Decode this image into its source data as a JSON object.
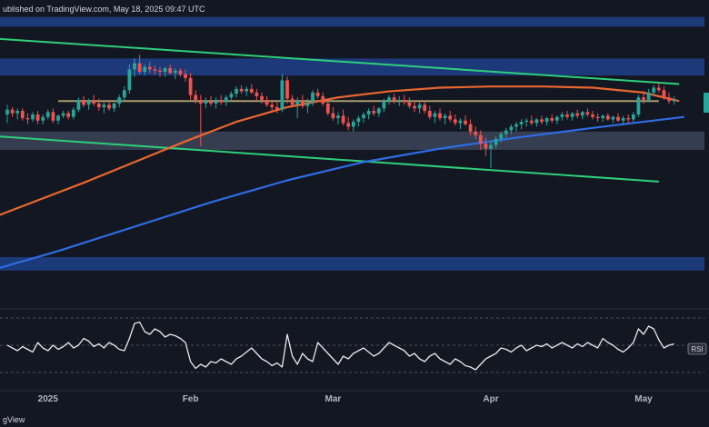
{
  "header": {
    "published_text": "ublished on TradingView.com, May 18, 2025 09:47 UTC"
  },
  "footer": {
    "brand_text": "gView"
  },
  "chart_data": {
    "type": "candlestick",
    "title": "",
    "xlabel": "",
    "ylabel": "",
    "x_ticks": [
      {
        "label": "2025",
        "x": 8
      },
      {
        "label": "Feb",
        "x": 36
      },
      {
        "label": "Mar",
        "x": 64
      },
      {
        "label": "Apr",
        "x": 95
      },
      {
        "label": "May",
        "x": 125
      }
    ],
    "candles": [
      [
        0,
        10,
        10.8,
        9.3,
        10.4
      ],
      [
        1,
        10.4,
        10.6,
        9.8,
        10.1
      ],
      [
        2,
        10.1,
        10.5,
        9.6,
        10.3
      ],
      [
        3,
        10.3,
        10.5,
        9.5,
        9.7
      ],
      [
        4,
        9.7,
        10.1,
        9.2,
        9.6
      ],
      [
        5,
        9.6,
        10.2,
        9.4,
        10
      ],
      [
        6,
        10,
        10.3,
        9.2,
        9.5
      ],
      [
        7,
        9.5,
        10,
        9.2,
        9.8
      ],
      [
        8,
        9.8,
        10.4,
        9.6,
        10.2
      ],
      [
        9,
        10.2,
        10.5,
        9.3,
        9.5
      ],
      [
        10,
        9.5,
        10,
        9.2,
        9.9
      ],
      [
        11,
        9.9,
        10.3,
        9.7,
        10.1
      ],
      [
        12,
        10.1,
        10.3,
        9.6,
        9.8
      ],
      [
        13,
        9.8,
        10.6,
        9.6,
        10.4
      ],
      [
        14,
        10.4,
        11.4,
        10.2,
        11.2
      ],
      [
        15,
        11.2,
        11.5,
        10.6,
        10.8
      ],
      [
        16,
        10.8,
        11.3,
        10.4,
        11.1
      ],
      [
        17,
        11.1,
        11.6,
        10.7,
        10.9
      ],
      [
        18,
        10.9,
        11.3,
        10.3,
        10.6
      ],
      [
        19,
        10.6,
        11,
        10.1,
        10.8
      ],
      [
        20,
        10.8,
        11.2,
        10.3,
        10.5
      ],
      [
        21,
        10.5,
        11,
        10.2,
        10.9
      ],
      [
        22,
        10.9,
        11.6,
        10.6,
        11.4
      ],
      [
        23,
        11.4,
        12.3,
        11.1,
        12
      ],
      [
        24,
        12,
        14.1,
        11.7,
        13.7
      ],
      [
        25,
        13.7,
        14.6,
        13.1,
        14.2
      ],
      [
        26,
        14.2,
        14.9,
        13.3,
        13.5
      ],
      [
        27,
        13.5,
        14.1,
        13.2,
        13.9
      ],
      [
        28,
        13.9,
        14.3,
        13.4,
        13.7
      ],
      [
        29,
        13.7,
        14,
        13.3,
        13.6
      ],
      [
        30,
        13.6,
        13.9,
        13.1,
        13.5
      ],
      [
        31,
        13.5,
        13.9,
        13.1,
        13.8
      ],
      [
        32,
        13.8,
        14.1,
        13.3,
        13.4
      ],
      [
        33,
        13.4,
        13.8,
        12.9,
        13.6
      ],
      [
        34,
        13.6,
        13.8,
        13.1,
        13.3
      ],
      [
        35,
        13.3,
        13.7,
        12.7,
        13
      ],
      [
        36,
        13,
        13.4,
        11.2,
        11.6
      ],
      [
        37,
        11.6,
        12,
        10.9,
        11.2
      ],
      [
        38,
        11.2,
        11.6,
        7.4,
        10.9
      ],
      [
        39,
        10.9,
        11.4,
        10.5,
        11.1
      ],
      [
        40,
        11.1,
        11.5,
        10.7,
        10.9
      ],
      [
        41,
        10.9,
        11.4,
        10.5,
        11.2
      ],
      [
        42,
        11.2,
        11.6,
        10.8,
        11
      ],
      [
        43,
        11,
        11.6,
        10.7,
        11.4
      ],
      [
        44,
        11.4,
        11.9,
        11.1,
        11.7
      ],
      [
        45,
        11.7,
        12.3,
        11.4,
        12.1
      ],
      [
        46,
        12.1,
        12.4,
        11.7,
        11.9
      ],
      [
        47,
        11.9,
        12.3,
        11.5,
        12.1
      ],
      [
        48,
        12.1,
        12.5,
        11.7,
        11.8
      ],
      [
        49,
        11.8,
        12.1,
        11.2,
        11.5
      ],
      [
        50,
        11.5,
        11.8,
        10.9,
        11.2
      ],
      [
        51,
        11.2,
        11.5,
        10.6,
        10.8
      ],
      [
        52,
        10.8,
        11.2,
        10.2,
        10.6
      ],
      [
        53,
        10.6,
        11,
        10.1,
        10.4
      ],
      [
        54,
        10.4,
        13.3,
        10.2,
        12.8
      ],
      [
        55,
        12.8,
        13.1,
        10.9,
        11.3
      ],
      [
        56,
        11.3,
        11.6,
        10.6,
        10.8
      ],
      [
        57,
        10.8,
        11.4,
        9.7,
        11.1
      ],
      [
        58,
        11.1,
        11.6,
        10.5,
        10.7
      ],
      [
        59,
        10.7,
        11.3,
        10.1,
        11
      ],
      [
        60,
        11,
        12,
        10.7,
        11.8
      ],
      [
        61,
        11.8,
        12.1,
        11.3,
        11.5
      ],
      [
        62,
        11.5,
        11.8,
        10.7,
        10.9
      ],
      [
        63,
        10.9,
        11.3,
        9.9,
        10.1
      ],
      [
        64,
        10.1,
        10.6,
        9.5,
        9.7
      ],
      [
        65,
        9.7,
        10.2,
        9.2,
        9.9
      ],
      [
        66,
        9.9,
        10.4,
        9.1,
        9.3
      ],
      [
        67,
        9.3,
        9.8,
        8.7,
        9
      ],
      [
        68,
        9,
        9.6,
        8.6,
        9.4
      ],
      [
        69,
        9.4,
        9.9,
        9,
        9.7
      ],
      [
        70,
        9.7,
        10.2,
        9.3,
        10
      ],
      [
        71,
        10,
        10.5,
        9.6,
        10.3
      ],
      [
        72,
        10.3,
        10.7,
        9.9,
        10.1
      ],
      [
        73,
        10.1,
        10.6,
        9.8,
        10.5
      ],
      [
        74,
        10.5,
        11.3,
        10.2,
        11.1
      ],
      [
        75,
        11.1,
        11.6,
        10.8,
        11.4
      ],
      [
        76,
        11.4,
        11.7,
        10.9,
        11.1
      ],
      [
        77,
        11.1,
        11.5,
        10.7,
        11.2
      ],
      [
        78,
        11.2,
        11.6,
        10.8,
        11
      ],
      [
        79,
        11,
        11.4,
        10.5,
        10.7
      ],
      [
        80,
        10.7,
        11.1,
        10.2,
        10.5
      ],
      [
        81,
        10.5,
        11,
        10.1,
        10.8
      ],
      [
        82,
        10.8,
        11.1,
        10.1,
        10.3
      ],
      [
        83,
        10.3,
        10.7,
        9.6,
        9.8
      ],
      [
        84,
        9.8,
        10.3,
        9.3,
        10.1
      ],
      [
        85,
        10.1,
        10.5,
        9.5,
        9.7
      ],
      [
        86,
        9.7,
        10.1,
        9.2,
        9.9
      ],
      [
        87,
        9.9,
        10.3,
        9.4,
        9.6
      ],
      [
        88,
        9.6,
        10,
        9.1,
        9.3
      ],
      [
        89,
        9.3,
        9.7,
        8.8,
        9.5
      ],
      [
        90,
        9.5,
        9.9,
        9.1,
        9.2
      ],
      [
        91,
        9.2,
        9.6,
        8.3,
        8.6
      ],
      [
        92,
        8.6,
        9,
        8,
        8.3
      ],
      [
        93,
        8.3,
        8.7,
        7.1,
        7.6
      ],
      [
        94,
        7.6,
        8.1,
        6.6,
        7.2
      ],
      [
        95,
        7.2,
        7.8,
        5.6,
        7.5
      ],
      [
        96,
        7.5,
        8.2,
        7.2,
        8
      ],
      [
        97,
        8,
        8.6,
        7.7,
        8.4
      ],
      [
        98,
        8.4,
        8.9,
        8.1,
        8.7
      ],
      [
        99,
        8.7,
        9.2,
        8.4,
        9
      ],
      [
        100,
        9,
        9.4,
        8.6,
        9.2
      ],
      [
        101,
        9.2,
        9.6,
        8.8,
        9.4
      ],
      [
        102,
        9.4,
        9.7,
        9,
        9.5
      ],
      [
        103,
        9.5,
        9.9,
        9.1,
        9.3
      ],
      [
        104,
        9.3,
        9.7,
        9,
        9.6
      ],
      [
        105,
        9.6,
        9.9,
        9.2,
        9.4
      ],
      [
        106,
        9.4,
        9.8,
        9.1,
        9.7
      ],
      [
        107,
        9.7,
        10,
        9.3,
        9.5
      ],
      [
        108,
        9.5,
        9.9,
        9.2,
        9.8
      ],
      [
        109,
        9.8,
        10.2,
        9.5,
        10
      ],
      [
        110,
        10,
        10.3,
        9.6,
        9.8
      ],
      [
        111,
        9.8,
        10.2,
        9.5,
        10.1
      ],
      [
        112,
        10.1,
        10.4,
        9.7,
        9.9
      ],
      [
        113,
        9.9,
        10.3,
        9.6,
        10.2
      ],
      [
        114,
        10.2,
        10.5,
        9.8,
        10
      ],
      [
        115,
        10,
        10.3,
        9.6,
        9.8
      ],
      [
        116,
        9.8,
        10.1,
        9.4,
        9.7
      ],
      [
        117,
        9.7,
        10,
        9.4,
        9.9
      ],
      [
        118,
        9.9,
        10.1,
        9.5,
        9.6
      ],
      [
        119,
        9.6,
        9.9,
        9.3,
        9.8
      ],
      [
        120,
        9.8,
        10.1,
        9.4,
        9.5
      ],
      [
        121,
        9.5,
        9.9,
        9.2,
        9.7
      ],
      [
        122,
        9.7,
        10,
        9.3,
        9.6
      ],
      [
        123,
        9.6,
        10.2,
        9.4,
        10
      ],
      [
        124,
        10,
        11.6,
        9.8,
        11.4
      ],
      [
        125,
        11.4,
        11.9,
        10.9,
        11.2
      ],
      [
        126,
        11.2,
        12.1,
        11,
        11.8
      ],
      [
        127,
        11.8,
        12.4,
        11.5,
        12.2
      ],
      [
        128,
        12.2,
        12.6,
        11.8,
        12
      ],
      [
        129,
        12,
        12.3,
        11.2,
        11.4
      ],
      [
        130,
        11.4,
        11.8,
        10.9,
        11.1
      ],
      [
        131,
        11.1,
        11.5,
        10.8,
        11.2
      ]
    ],
    "moving_averages": [
      {
        "color": "#e8672f",
        "points": [
          [
            -5,
            1.2
          ],
          [
            5,
            2.8
          ],
          [
            15,
            4.4
          ],
          [
            25,
            6.1
          ],
          [
            35,
            7.8
          ],
          [
            45,
            9.4
          ],
          [
            55,
            10.6
          ],
          [
            65,
            11.4
          ],
          [
            75,
            11.9
          ],
          [
            85,
            12.2
          ],
          [
            95,
            12.3
          ],
          [
            105,
            12.3
          ],
          [
            115,
            12.2
          ],
          [
            125,
            11.8
          ],
          [
            132,
            11.1
          ]
        ]
      },
      {
        "color": "#2f6ce5",
        "points": [
          [
            -5,
            -3
          ],
          [
            10,
            -1.2
          ],
          [
            25,
            0.8
          ],
          [
            40,
            2.8
          ],
          [
            55,
            4.6
          ],
          [
            70,
            6.1
          ],
          [
            85,
            7.2
          ],
          [
            100,
            8.1
          ],
          [
            115,
            8.9
          ],
          [
            125,
            9.4
          ],
          [
            133,
            9.8
          ]
        ]
      }
    ],
    "trend_lines": [
      {
        "color": "#2ecf7a",
        "points": [
          [
            -5,
            16.3
          ],
          [
            132,
            12.5
          ]
        ]
      },
      {
        "color": "#2ecf7a",
        "points": [
          [
            -5,
            8.3
          ],
          [
            128,
            4.5
          ]
        ]
      },
      {
        "color": "#a89c6c",
        "points": [
          [
            10,
            11.1
          ],
          [
            128,
            11.1
          ]
        ]
      }
    ],
    "zones": [
      {
        "from": 13.2,
        "to": 14.6,
        "color": "#1f3f8a"
      },
      {
        "from": 7.1,
        "to": 8.6,
        "color": "#3b4558"
      },
      {
        "from": -2.8,
        "to": -1.7,
        "color": "#1f3f8a"
      },
      {
        "from": 17.2,
        "to": 18.0,
        "color": "#1f3f8a"
      }
    ],
    "rsi": {
      "label": "RSI",
      "values": [
        50,
        48,
        46,
        49,
        47,
        45,
        52,
        48,
        46,
        50,
        47,
        49,
        52,
        48,
        50,
        55,
        53,
        49,
        51,
        48,
        52,
        50,
        47,
        46,
        55,
        66,
        67,
        60,
        58,
        62,
        60,
        56,
        58,
        57,
        55,
        52,
        38,
        33,
        36,
        34,
        38,
        37,
        40,
        38,
        36,
        40,
        42,
        45,
        48,
        44,
        40,
        38,
        35,
        37,
        34,
        58,
        42,
        36,
        44,
        40,
        38,
        52,
        48,
        44,
        40,
        36,
        42,
        40,
        44,
        46,
        48,
        45,
        42,
        44,
        48,
        52,
        50,
        48,
        46,
        42,
        44,
        40,
        38,
        42,
        44,
        40,
        38,
        36,
        40,
        38,
        35,
        34,
        32,
        36,
        40,
        42,
        44,
        48,
        47,
        45,
        48,
        50,
        46,
        48,
        50,
        49,
        51,
        48,
        50,
        52,
        50,
        48,
        51,
        49,
        52,
        50,
        48,
        55,
        52,
        50,
        47,
        45,
        48,
        52,
        62,
        58,
        64,
        62,
        54,
        48,
        50,
        51
      ]
    }
  }
}
